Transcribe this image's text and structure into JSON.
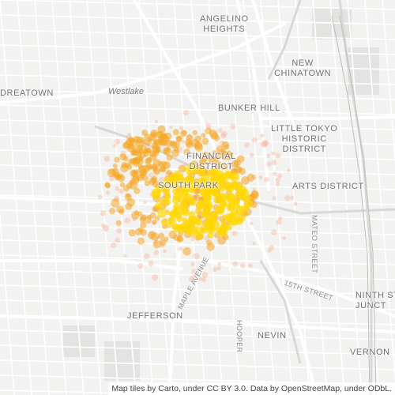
{
  "map": {
    "labels": {
      "angelino_heights": "ANGELINO\nHEIGHTS",
      "new_chinatown": "NEW\nCHINATOWN",
      "westlake_left": "DREATOWN",
      "westlake": "Westlake",
      "bunker_hill": "BUNKER HILL",
      "little_tokyo": "LITTLE TOKYO\nHISTORIC\nDISTRICT",
      "financial": "FINANCIAL\nDISTRICT",
      "south_park": "SOUTH PARK",
      "arts": "ARTS DISTRICT",
      "mateo": "MATEO STREET",
      "fifteenth": "15TH STREET",
      "maple": "MAPLE AVENUE",
      "ninth_st": "NINTH ST\nJUNCT",
      "jefferson": "JEFFERSON",
      "hooper": "HOOPER",
      "nevin": "NEVIN",
      "vernon": "VERNON"
    },
    "attribution": "Map tiles by Carto, under CC BY 3.0. Data by OpenStreetMap, under ODbL.",
    "colors": {
      "background": "#f2f2f1",
      "minor_road": "#ffffff",
      "major_road": "#ffffff",
      "freeway": "#d9d9d9",
      "park": "#e6e6e4",
      "heat_low": "#f7b9a0",
      "heat_mid": "#f5a623",
      "heat_high": "#ffd700"
    },
    "heat_layer": "point density heatmap concentrated in Downtown Los Angeles (South Park / Fashion District)"
  }
}
